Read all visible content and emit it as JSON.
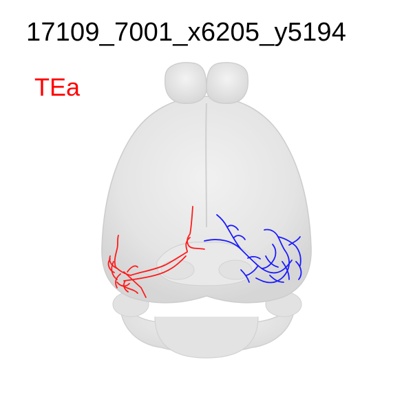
{
  "figure": {
    "title": "17109_7001_x6205_y5194",
    "region_label": "TEa",
    "colors": {
      "region_label": "#ff0000",
      "left_neuron": "#ff1a1a",
      "right_neuron": "#1a1aff",
      "brain_fill": "#e6e6e6",
      "brain_edge": "#cfcfcf"
    },
    "view": "dorsal view of mouse brain with reconstructed neuron morphology"
  }
}
